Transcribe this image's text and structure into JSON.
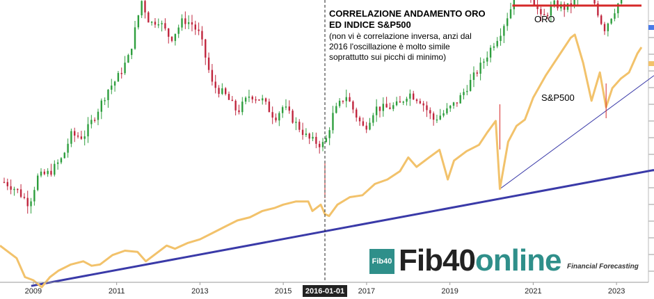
{
  "chart_data": {
    "type": "line",
    "title": "CORRELAZIONE ANDAMENTO  ORO ED INDICE S&P500",
    "annotation": "(non vi è correlazione inversa, anzi dal\n2016 l'oscillazione è molto simile\n soprattutto sui picchi di minimo)",
    "x_ticks": [
      "2009",
      "2011",
      "2013",
      "2015",
      "2016-01-01",
      "2017",
      "2019",
      "2021",
      "2023"
    ],
    "x_tick_years": [
      2009,
      2011,
      2013,
      2015,
      2016,
      2017,
      2019,
      2021,
      2023
    ],
    "highlighted_date": "2016-01-01",
    "x_range": [
      2008.2,
      2023.9
    ],
    "series_labels": {
      "gold": "ORO",
      "sp500": "S&P500"
    },
    "colors": {
      "gold_up": "#2e9e3e",
      "gold_down": "#c0263e",
      "sp500": "#f2c26b",
      "trendline": "#3a3aa8",
      "resistance": "#d62828",
      "vline": "#222222",
      "date_badge": "#222222",
      "brand": "#2f8f8a"
    },
    "gold_close": [
      [
        2008.3,
        875
      ],
      [
        2008.6,
        835
      ],
      [
        2008.9,
        760
      ],
      [
        2009.1,
        900
      ],
      [
        2009.4,
        925
      ],
      [
        2009.7,
        1000
      ],
      [
        2009.9,
        1120
      ],
      [
        2010.2,
        1110
      ],
      [
        2010.5,
        1230
      ],
      [
        2010.8,
        1360
      ],
      [
        2011.0,
        1410
      ],
      [
        2011.3,
        1530
      ],
      [
        2011.6,
        1820
      ],
      [
        2011.8,
        1700
      ],
      [
        2012.0,
        1720
      ],
      [
        2012.3,
        1620
      ],
      [
        2012.6,
        1720
      ],
      [
        2012.8,
        1700
      ],
      [
        2013.0,
        1640
      ],
      [
        2013.3,
        1380
      ],
      [
        2013.6,
        1330
      ],
      [
        2013.9,
        1240
      ],
      [
        2014.2,
        1330
      ],
      [
        2014.5,
        1300
      ],
      [
        2014.8,
        1210
      ],
      [
        2015.0,
        1270
      ],
      [
        2015.3,
        1180
      ],
      [
        2015.6,
        1100
      ],
      [
        2015.9,
        1070
      ],
      [
        2016.0,
        1075
      ],
      [
        2016.2,
        1230
      ],
      [
        2016.5,
        1330
      ],
      [
        2016.8,
        1200
      ],
      [
        2016.95,
        1150
      ],
      [
        2017.2,
        1260
      ],
      [
        2017.5,
        1260
      ],
      [
        2017.8,
        1280
      ],
      [
        2018.0,
        1340
      ],
      [
        2018.3,
        1300
      ],
      [
        2018.6,
        1200
      ],
      [
        2018.9,
        1240
      ],
      [
        2019.2,
        1300
      ],
      [
        2019.5,
        1400
      ],
      [
        2019.8,
        1500
      ],
      [
        2020.0,
        1580
      ],
      [
        2020.2,
        1650
      ],
      [
        2020.5,
        1800
      ],
      [
        2020.6,
        2000
      ],
      [
        2020.8,
        1880
      ],
      [
        2021.0,
        1830
      ],
      [
        2021.2,
        1720
      ],
      [
        2021.5,
        1800
      ],
      [
        2021.8,
        1780
      ],
      [
        2022.0,
        1820
      ],
      [
        2022.2,
        1950
      ],
      [
        2022.4,
        1850
      ],
      [
        2022.7,
        1670
      ],
      [
        2022.9,
        1750
      ],
      [
        2023.1,
        1830
      ],
      [
        2023.3,
        1990
      ],
      [
        2023.5,
        1930
      ],
      [
        2023.6,
        1920
      ]
    ],
    "sp500_close": [
      [
        2008.2,
        1400
      ],
      [
        2008.4,
        1300
      ],
      [
        2008.6,
        1200
      ],
      [
        2008.8,
        900
      ],
      [
        2009.0,
        850
      ],
      [
        2009.2,
        740
      ],
      [
        2009.4,
        900
      ],
      [
        2009.6,
        1000
      ],
      [
        2009.9,
        1100
      ],
      [
        2010.2,
        1150
      ],
      [
        2010.4,
        1080
      ],
      [
        2010.6,
        1100
      ],
      [
        2010.9,
        1250
      ],
      [
        2011.2,
        1320
      ],
      [
        2011.5,
        1300
      ],
      [
        2011.7,
        1150
      ],
      [
        2011.9,
        1250
      ],
      [
        2012.2,
        1400
      ],
      [
        2012.4,
        1350
      ],
      [
        2012.7,
        1440
      ],
      [
        2013.0,
        1500
      ],
      [
        2013.3,
        1600
      ],
      [
        2013.6,
        1700
      ],
      [
        2013.9,
        1800
      ],
      [
        2014.2,
        1850
      ],
      [
        2014.5,
        1950
      ],
      [
        2014.8,
        2000
      ],
      [
        2015.0,
        2050
      ],
      [
        2015.3,
        2100
      ],
      [
        2015.6,
        2100
      ],
      [
        2015.7,
        1950
      ],
      [
        2015.9,
        2050
      ],
      [
        2016.0,
        1900
      ],
      [
        2016.1,
        1870
      ],
      [
        2016.3,
        2050
      ],
      [
        2016.6,
        2170
      ],
      [
        2016.9,
        2200
      ],
      [
        2017.2,
        2380
      ],
      [
        2017.5,
        2450
      ],
      [
        2017.8,
        2580
      ],
      [
        2018.0,
        2800
      ],
      [
        2018.2,
        2650
      ],
      [
        2018.5,
        2800
      ],
      [
        2018.75,
        2920
      ],
      [
        2018.95,
        2450
      ],
      [
        2019.1,
        2750
      ],
      [
        2019.4,
        2900
      ],
      [
        2019.7,
        3000
      ],
      [
        2019.9,
        3200
      ],
      [
        2020.1,
        3380
      ],
      [
        2020.2,
        2300
      ],
      [
        2020.4,
        3050
      ],
      [
        2020.6,
        3300
      ],
      [
        2020.8,
        3400
      ],
      [
        2021.0,
        3750
      ],
      [
        2021.3,
        4100
      ],
      [
        2021.6,
        4400
      ],
      [
        2021.9,
        4700
      ],
      [
        2022.0,
        4750
      ],
      [
        2022.2,
        4300
      ],
      [
        2022.4,
        3700
      ],
      [
        2022.6,
        4150
      ],
      [
        2022.75,
        3600
      ],
      [
        2022.9,
        3900
      ],
      [
        2023.1,
        4050
      ],
      [
        2023.3,
        4150
      ],
      [
        2023.5,
        4450
      ],
      [
        2023.6,
        4550
      ]
    ],
    "trendlines": [
      {
        "from": [
          2008.95,
          760
        ],
        "to": [
          2023.9,
          2600
        ]
      },
      {
        "from": [
          2020.2,
          2300
        ],
        "to": [
          2023.9,
          4100
        ]
      }
    ],
    "resistance": {
      "from": 2020.5,
      "to": 2023.6,
      "level": 4990
    }
  },
  "brand": {
    "badge": "Fib40",
    "name_part1": "Fib40",
    "name_part2": "online",
    "tagline": "Financial Forecasting"
  }
}
